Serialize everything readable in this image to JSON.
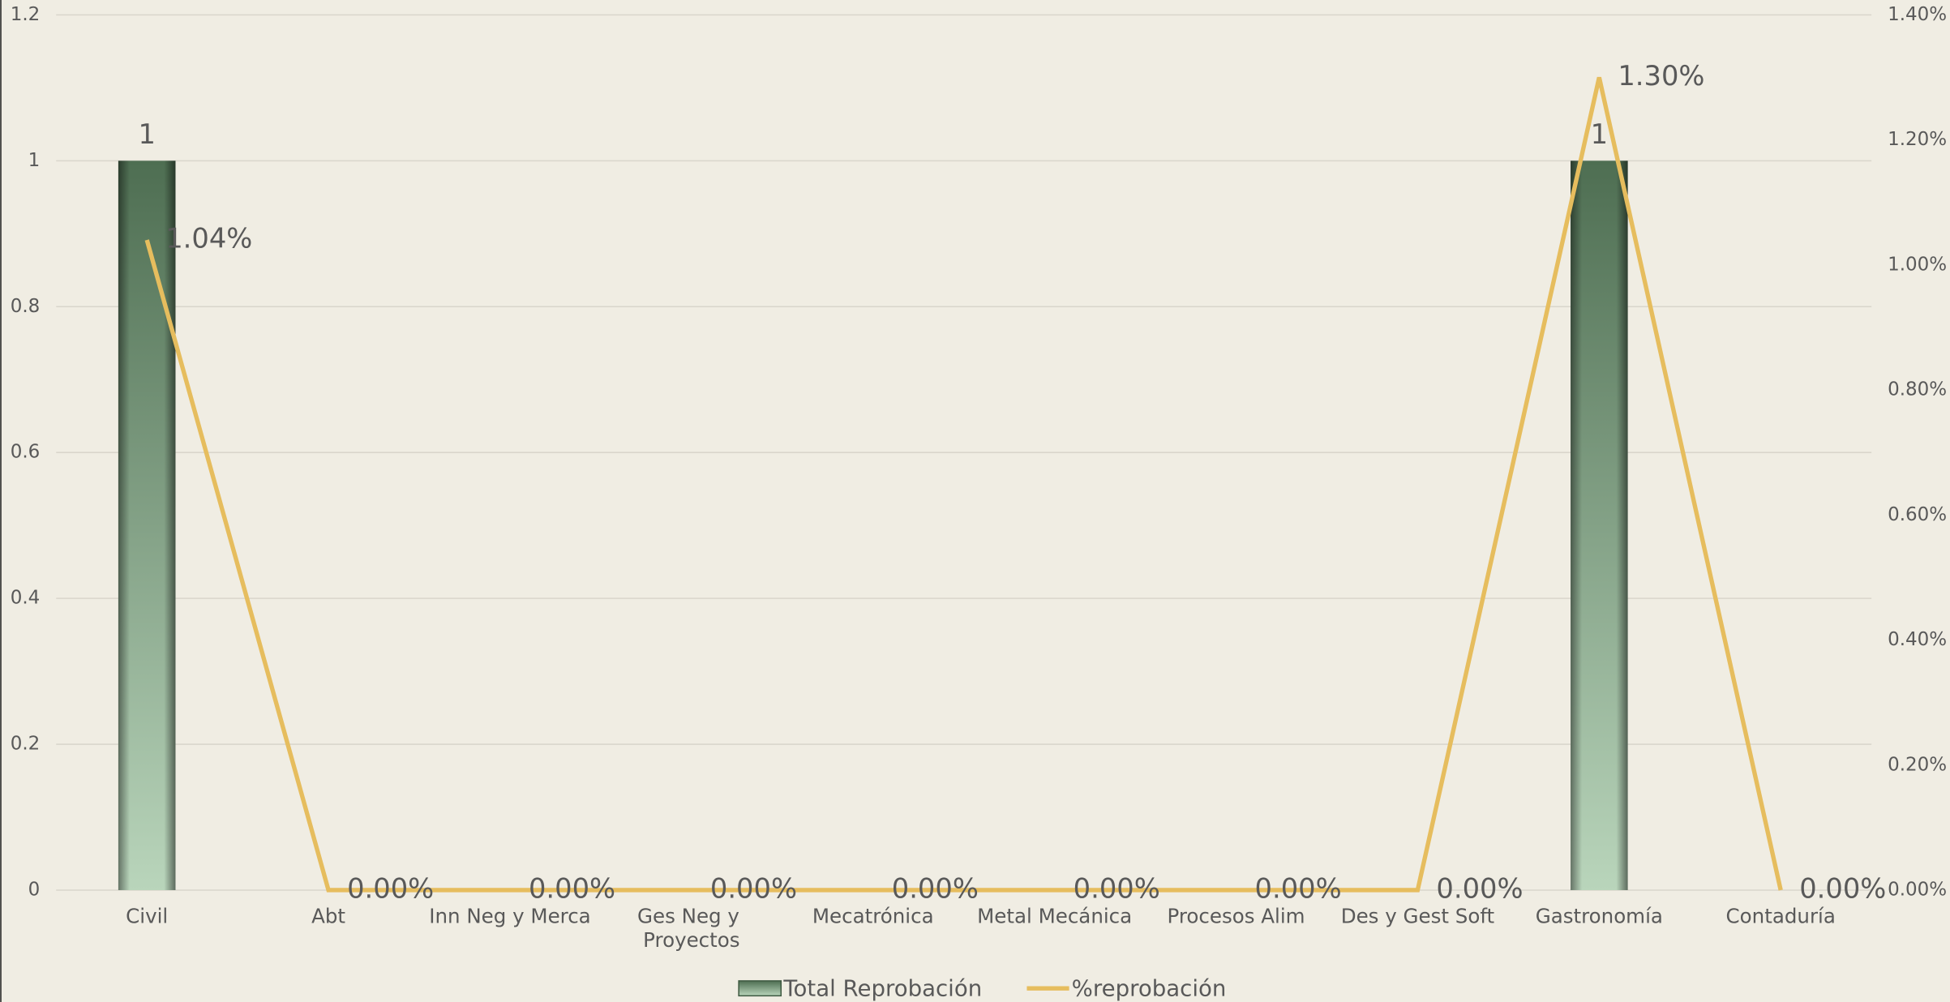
{
  "chart_data": {
    "type": "bar-line",
    "categories": [
      "Civil",
      "Abt",
      "Inn Neg y Merca",
      "Ges Neg y Proyectos",
      "Mecatrónica",
      "Metal Mecánica",
      "Procesos Alim",
      "Des y Gest Soft",
      "Gastronomía",
      "Contaduría"
    ],
    "series": [
      {
        "name": "Total Reprobación",
        "type": "bar",
        "color": "#5f7f62",
        "values": [
          1,
          0,
          0,
          0,
          0,
          0,
          0,
          0,
          1,
          0
        ],
        "value_labels": [
          "1",
          null,
          null,
          null,
          null,
          null,
          null,
          null,
          "1",
          null
        ]
      },
      {
        "name": "%reprobación",
        "type": "line",
        "axis": "y2",
        "color": "#e6bd5e",
        "values": [
          1.04,
          0,
          0,
          0,
          0,
          0,
          0,
          0,
          1.3,
          0
        ],
        "value_labels": [
          "1.04%",
          "0.00%",
          "0.00%",
          "0.00%",
          "0.00%",
          "0.00%",
          "0.00%",
          "0.00%",
          "1.30%",
          "0.00%"
        ]
      }
    ],
    "ylim": [
      0,
      1.2
    ],
    "yticks": [
      0,
      0.2,
      0.4,
      0.6,
      0.8,
      1,
      1.2
    ],
    "y2lim": [
      0,
      1.4
    ],
    "y2ticks": [
      {
        "value": 0,
        "label": "0.00%"
      },
      {
        "value": 0.2,
        "label": "0.20%"
      },
      {
        "value": 0.4,
        "label": "0.40%"
      },
      {
        "value": 0.6,
        "label": "0.60%"
      },
      {
        "value": 0.8,
        "label": "0.80%"
      },
      {
        "value": 1.0,
        "label": "1.00%"
      },
      {
        "value": 1.2,
        "label": "1.20%"
      },
      {
        "value": 1.4,
        "label": "1.40%"
      }
    ],
    "grid": true,
    "legend": "bottom"
  }
}
